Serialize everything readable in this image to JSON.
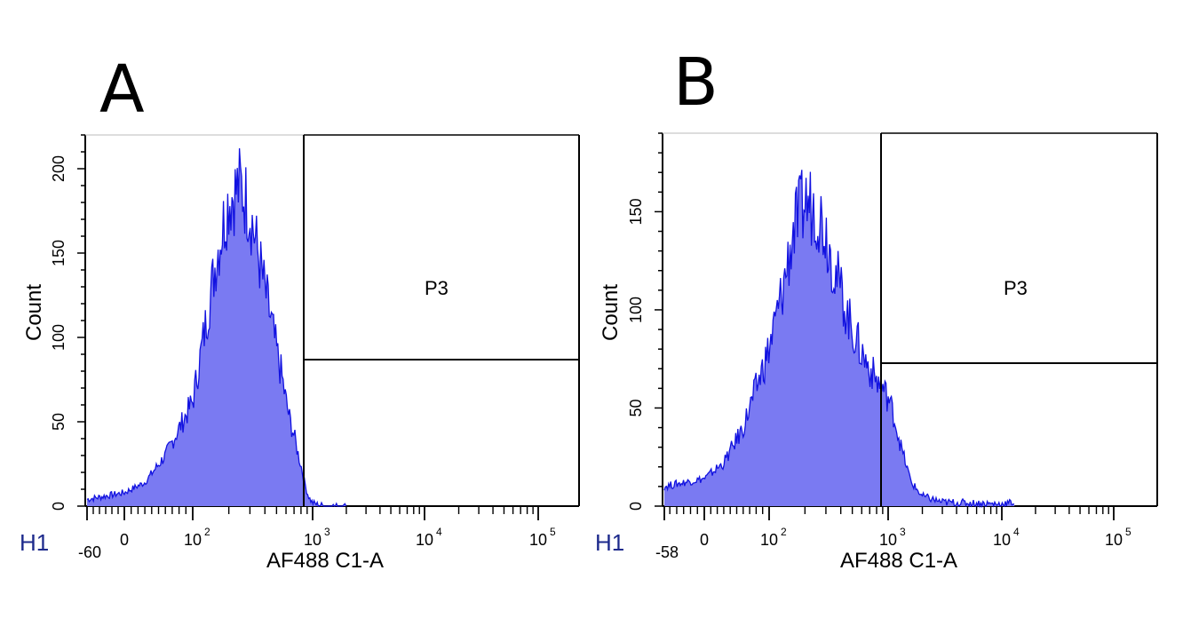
{
  "panels": [
    {
      "letter": "A",
      "histogram_label": "H1",
      "x_min_label": "-60",
      "y_label": "Count",
      "x_label": "AF488 C1-A",
      "gate": "P3",
      "colors": {
        "fill": "#7a7af2",
        "stroke": "#1212e0"
      }
    },
    {
      "letter": "B",
      "histogram_label": "H1",
      "x_min_label": "-58",
      "y_label": "Count",
      "x_label": "AF488 C1-A",
      "gate": "P3",
      "colors": {
        "fill": "#7a7af2",
        "stroke": "#1212e0"
      }
    }
  ],
  "chart_data": [
    {
      "type": "area",
      "title": "A",
      "xlabel": "AF488 C1-A",
      "ylabel": "Count",
      "x_scale": "biexponential",
      "x_ticks": [
        "-60",
        "0",
        "10^2",
        "10^3",
        "10^4",
        "10^5"
      ],
      "y_ticks": [
        0,
        50,
        100,
        150,
        200
      ],
      "ylim": [
        0,
        220
      ],
      "gate": {
        "name": "P3",
        "x_range": [
          "~10^3",
          "max"
        ]
      },
      "series": [
        {
          "x": [
            -60,
            0,
            30,
            60,
            100,
            130,
            160,
            200,
            250,
            300,
            350,
            400,
            450,
            500,
            550,
            600,
            650,
            700,
            750,
            800,
            850,
            900,
            950,
            1000,
            1100,
            1300,
            2000
          ],
          "y": [
            4,
            8,
            14,
            30,
            62,
            110,
            150,
            182,
            190,
            175,
            150,
            128,
            110,
            92,
            78,
            62,
            50,
            42,
            32,
            24,
            15,
            8,
            4,
            2,
            1,
            0,
            0
          ]
        }
      ]
    },
    {
      "type": "area",
      "title": "B",
      "xlabel": "AF488 C1-A",
      "ylabel": "Count",
      "x_scale": "biexponential",
      "x_ticks": [
        "-58",
        "0",
        "10^2",
        "10^3",
        "10^4",
        "10^5"
      ],
      "y_ticks": [
        0,
        50,
        100,
        150
      ],
      "ylim": [
        0,
        190
      ],
      "gate": {
        "name": "P3",
        "x_range": [
          "~10^3",
          "max"
        ]
      },
      "series": [
        {
          "x": [
            -58,
            -30,
            0,
            30,
            60,
            100,
            130,
            160,
            200,
            250,
            300,
            350,
            400,
            450,
            500,
            600,
            700,
            800,
            900,
            1000,
            1100,
            1300,
            1600,
            2000,
            3000,
            10000,
            13000
          ],
          "y": [
            10,
            12,
            14,
            22,
            40,
            80,
            110,
            140,
            155,
            152,
            140,
            122,
            110,
            98,
            90,
            78,
            70,
            64,
            60,
            55,
            48,
            30,
            12,
            5,
            2,
            1,
            2
          ]
        }
      ]
    }
  ]
}
